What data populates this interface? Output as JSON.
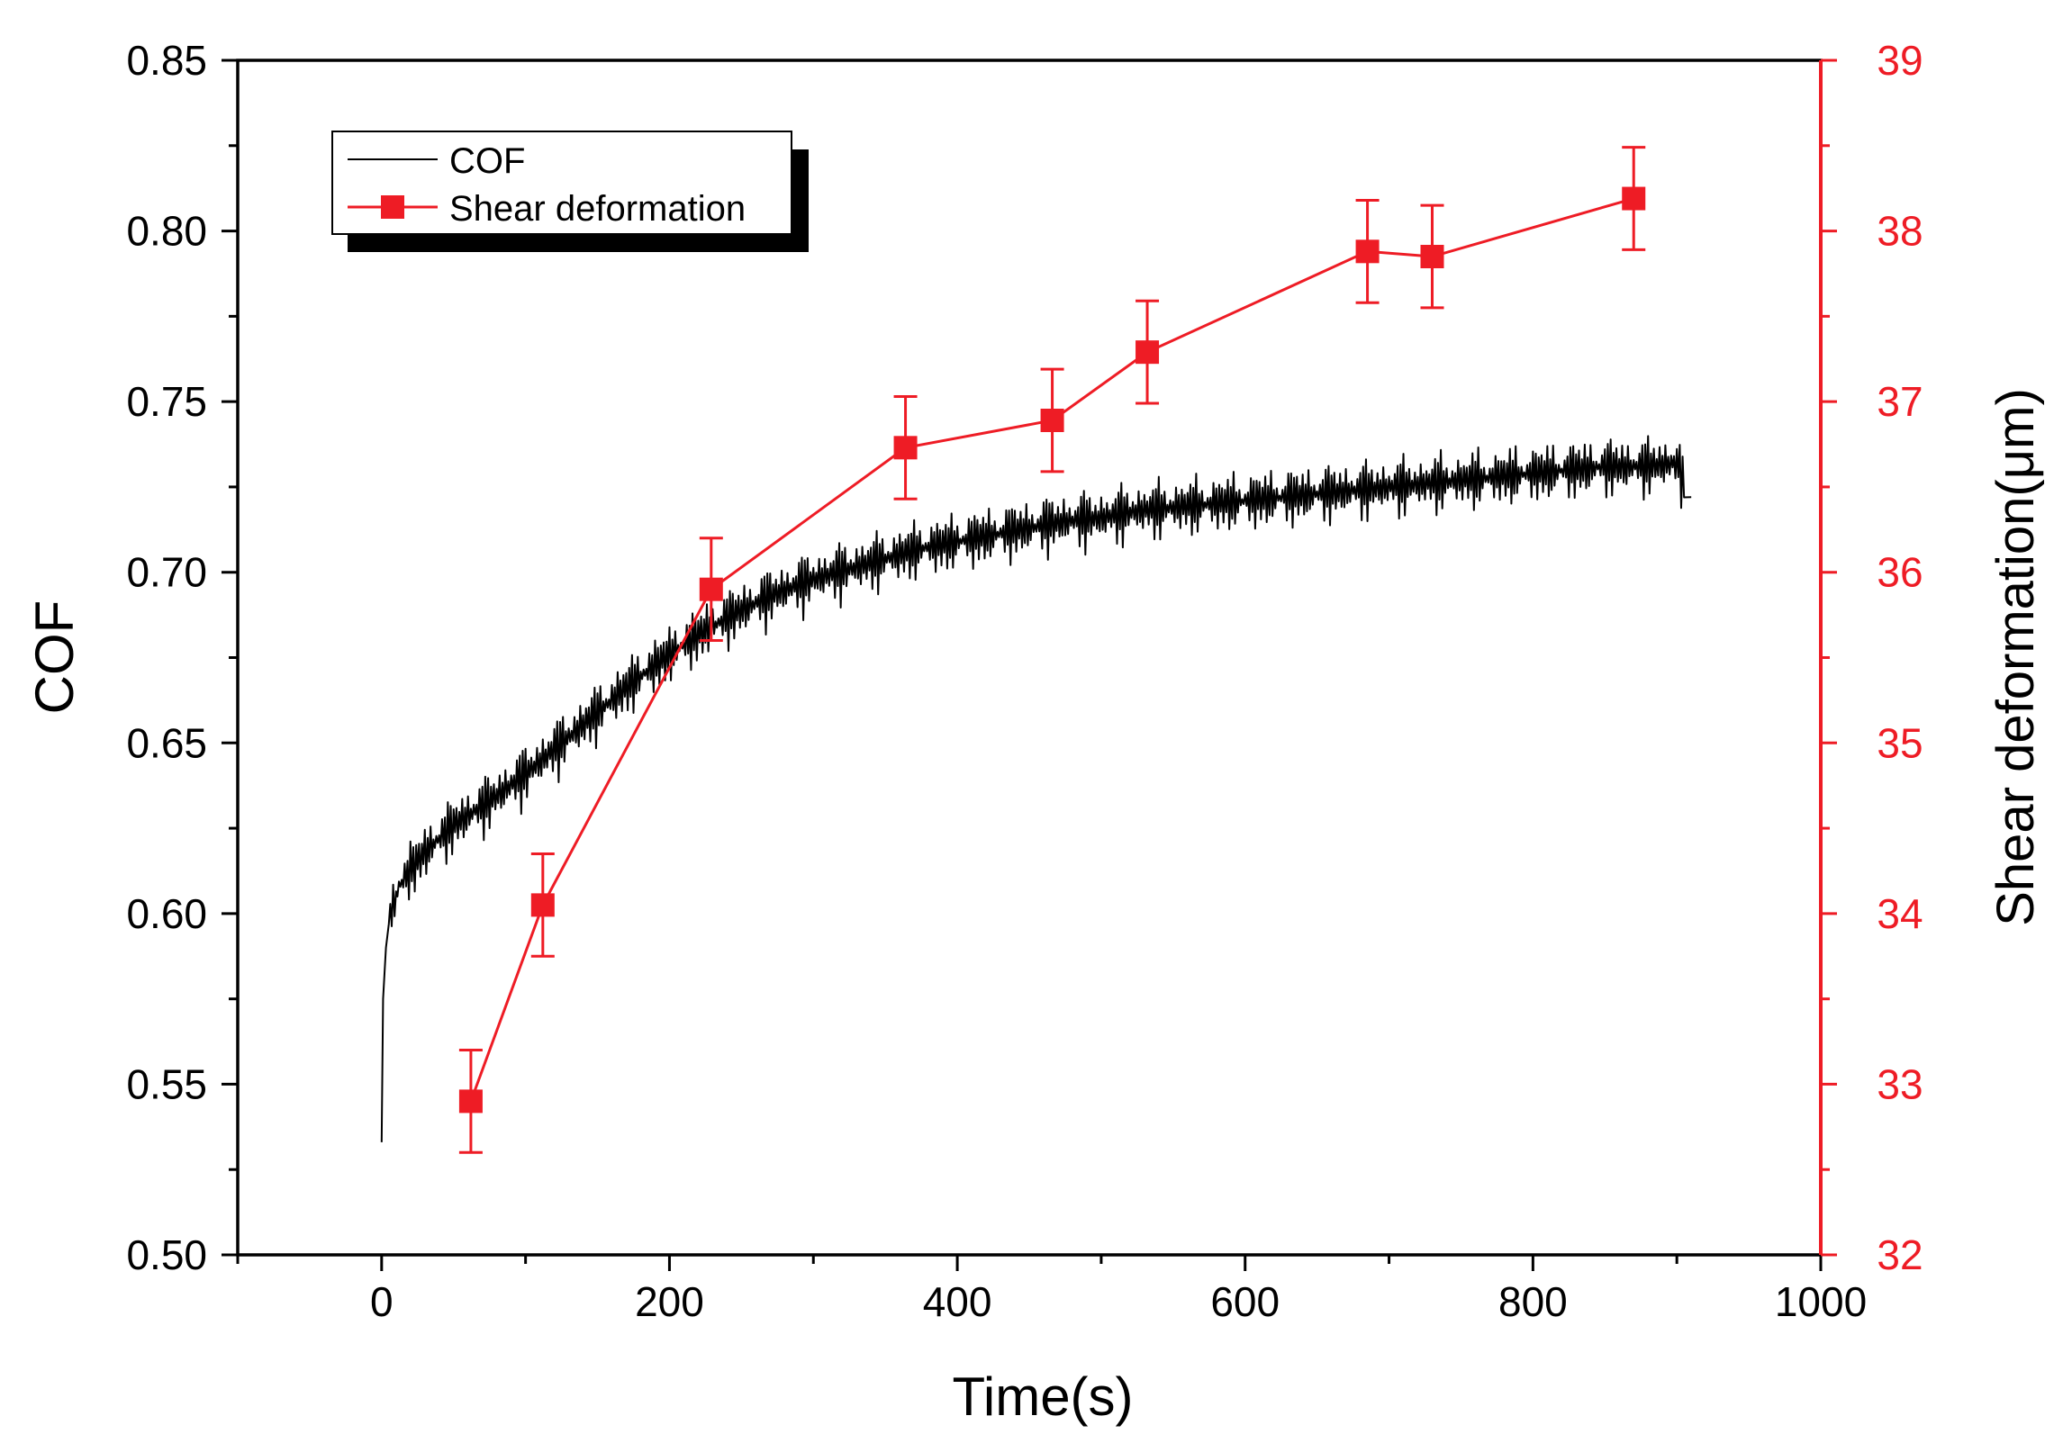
{
  "chart_data": {
    "type": "line",
    "title": "",
    "xlabel": "Time(s)",
    "ylabel_left": "COF",
    "ylabel_right": "Shear deformation(μm)",
    "xlim": [
      -100,
      1000
    ],
    "ylim_left": [
      0.5,
      0.85
    ],
    "ylim_right": [
      32,
      39
    ],
    "x_ticks": [
      0,
      200,
      400,
      600,
      800,
      1000
    ],
    "x_tick_labels": [
      "0",
      "200",
      "400",
      "600",
      "800",
      "1000"
    ],
    "y_left_ticks": [
      0.5,
      0.55,
      0.6,
      0.65,
      0.7,
      0.75,
      0.8,
      0.85
    ],
    "y_left_tick_labels": [
      "0.50",
      "0.55",
      "0.60",
      "0.65",
      "0.70",
      "0.75",
      "0.80",
      "0.85"
    ],
    "y_right_ticks": [
      32,
      33,
      34,
      35,
      36,
      37,
      38,
      39
    ],
    "y_right_tick_labels": [
      "32",
      "33",
      "34",
      "35",
      "36",
      "37",
      "38",
      "39"
    ],
    "grid": false,
    "legend_position": "top-left",
    "series": [
      {
        "name": "COF",
        "axis": "left",
        "color": "#000000",
        "style": "line",
        "x": [
          0,
          1,
          3,
          5,
          8,
          12,
          20,
          30,
          50,
          75,
          100,
          125,
          150,
          175,
          200,
          225,
          250,
          275,
          300,
          325,
          350,
          375,
          400,
          425,
          450,
          475,
          500,
          525,
          550,
          575,
          600,
          625,
          650,
          675,
          700,
          725,
          750,
          775,
          800,
          825,
          850,
          875,
          900,
          910
        ],
        "values": [
          0.533,
          0.575,
          0.59,
          0.597,
          0.602,
          0.608,
          0.613,
          0.618,
          0.626,
          0.633,
          0.641,
          0.65,
          0.659,
          0.668,
          0.676,
          0.683,
          0.689,
          0.694,
          0.698,
          0.701,
          0.704,
          0.707,
          0.709,
          0.711,
          0.713,
          0.715,
          0.716,
          0.718,
          0.719,
          0.72,
          0.721,
          0.722,
          0.723,
          0.724,
          0.725,
          0.726,
          0.727,
          0.728,
          0.729,
          0.73,
          0.731,
          0.731,
          0.732,
          0.722
        ],
        "oscillation_amplitude": 0.011
      },
      {
        "name": "Shear deformation",
        "axis": "right",
        "color": "#ee1c25",
        "style": "line-marker-square",
        "x": [
          62,
          112,
          229,
          364,
          466,
          532,
          685,
          730,
          870
        ],
        "values": [
          32.9,
          34.05,
          35.9,
          36.73,
          36.89,
          37.29,
          37.88,
          37.85,
          38.19
        ],
        "errors": [
          0.3,
          0.3,
          0.3,
          0.3,
          0.3,
          0.3,
          0.3,
          0.3,
          0.3
        ]
      }
    ]
  }
}
